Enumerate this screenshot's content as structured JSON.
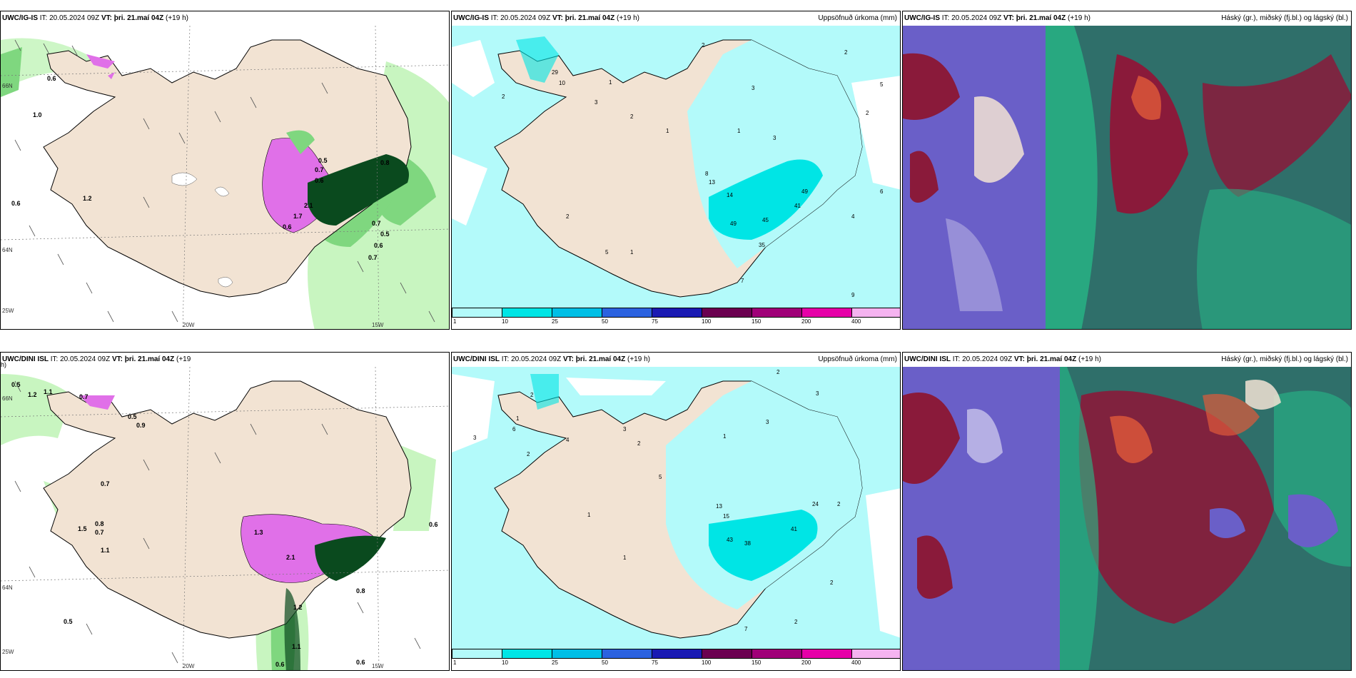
{
  "panels": {
    "p1": {
      "model": "UWC/IG-IS",
      "it_label": "IT:",
      "it": "20.05.2024 09Z",
      "vt_label": "VT: þri. 21.maí 04Z",
      "lead": "(+19 h)",
      "right": ""
    },
    "p2": {
      "model": "UWC/IG-IS",
      "it_label": "IT:",
      "it": "20.05.2024 09Z",
      "vt_label": "VT: þri. 21.maí 04Z",
      "lead": "(+19 h)",
      "right": "Uppsöfnuð úrkoma (mm)"
    },
    "p3": {
      "model": "UWC/IG-IS",
      "it_label": "IT:",
      "it": "20.05.2024 09Z",
      "vt_label": "VT: þri. 21.maí 04Z",
      "lead": "(+19 h)",
      "right": "Háský (gr.), miðský (fj.bl.) og lágský (bl.)"
    },
    "p4": {
      "model": "UWC/DINI ISL",
      "it_label": "IT:",
      "it": "20.05.2024 09Z",
      "vt_label": "VT: þri. 21.maí 04Z",
      "lead": "(+19",
      "right": ""
    },
    "p5": {
      "model": "UWC/DINI ISL",
      "it_label": "IT:",
      "it": "20.05.2024 09Z",
      "vt_label": "VT: þri. 21.maí 04Z",
      "lead": "(+19 h)",
      "right": "Uppsöfnuð úrkoma (mm)"
    },
    "p6": {
      "model": "UWC/DINI ISL",
      "it_label": "IT:",
      "it": "20.05.2024 09Z",
      "vt_label": "VT: þri. 21.maí 04Z",
      "lead": "(+19 h)",
      "right": "Háský (gr.), miðský (fj.bl.) og lágský (bl.)"
    }
  },
  "p4_wrap": "h)",
  "axes": {
    "lat66": "66N",
    "lat64": "64N",
    "lon25": "25W",
    "lon20": "20W",
    "lon15": "15W"
  },
  "scale": {
    "ticks": [
      "1",
      "10",
      "25",
      "50",
      "75",
      "100",
      "150",
      "200",
      "400"
    ],
    "colors": [
      "#b3fafa",
      "#00e5e5",
      "#00bfe6",
      "#2b62e0",
      "#1a1ab3",
      "#6b0050",
      "#a00078",
      "#e600a8",
      "#f5b3f0"
    ]
  },
  "labels_p1": [
    "0.6",
    "1.0",
    "0.6",
    "1.2",
    "0.5",
    "0.7",
    "0.6",
    "0.8",
    "0.7",
    "0.5",
    "0.6",
    "0.7",
    "0.6",
    "1.7",
    "2.1"
  ],
  "labels_p4": [
    "0.5",
    "1.2",
    "1.1",
    "0.7",
    "0.5",
    "0.9",
    "0.7",
    "1.5",
    "0.8",
    "0.7",
    "1.1",
    "0.5",
    "0.8",
    "1.2",
    "1.1",
    "0.6",
    "0.6",
    "0.6",
    "2.1",
    "1.3"
  ],
  "labels_p2": [
    "29",
    "10",
    "2",
    "1",
    "3",
    "2",
    "1",
    "8",
    "13",
    "14",
    "49",
    "45",
    "41",
    "49",
    "35",
    "2",
    "5",
    "7",
    "9",
    "6",
    "4",
    "2",
    "1",
    "3",
    "2",
    "1",
    "5",
    "3",
    "2"
  ],
  "labels_p5": [
    "2",
    "3",
    "1",
    "6",
    "2",
    "4",
    "1",
    "3",
    "2",
    "5",
    "13",
    "15",
    "43",
    "38",
    "41",
    "24",
    "2",
    "3",
    "2",
    "7",
    "2",
    "1",
    "2",
    "1",
    "3"
  ],
  "colors": {
    "land": "#f2e3d3",
    "green_light": "#c8f5c0",
    "green_mid": "#7fd77f",
    "green_dark": "#0a4a1e",
    "magenta": "#e070e8",
    "cyan_light": "#b3fafa",
    "cyan": "#00e5e5",
    "cloud_purple": "#6a5fc8",
    "cloud_maroon": "#8a1a3a",
    "cloud_teal": "#2f6f6a",
    "cloud_green": "#25c08a"
  }
}
